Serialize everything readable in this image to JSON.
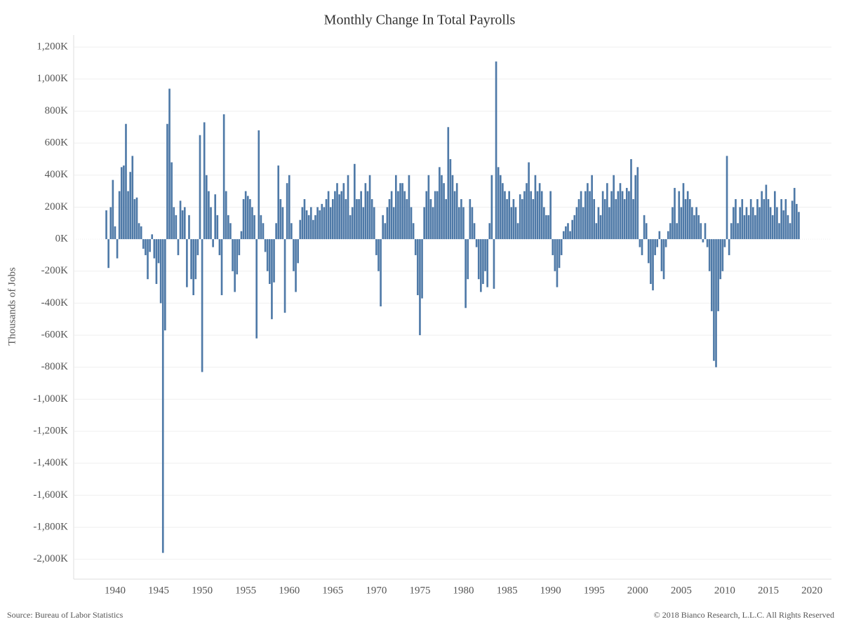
{
  "chart_data": {
    "type": "bar",
    "title": "Monthly Change In Total Payrolls",
    "y_label": "Thousands of Jobs",
    "source": "Source: Bureau of Labor Statistics",
    "copyright": "© 2018 Bianco Research, L.L.C. All Rights Reserved",
    "color": "#4e79a7",
    "grid": true,
    "xlim": [
      1935.25,
      2022.25
    ],
    "xticks": [
      1940,
      1945,
      1950,
      1955,
      1960,
      1965,
      1970,
      1975,
      1980,
      1985,
      1990,
      1995,
      2000,
      2005,
      2010,
      2015,
      2020
    ],
    "ylim": [
      -2080,
      1240
    ],
    "yticks": [
      {
        "value": 1200,
        "label": "1,200K"
      },
      {
        "value": 1000,
        "label": "1,000K"
      },
      {
        "value": 800,
        "label": "800K"
      },
      {
        "value": 600,
        "label": "600K"
      },
      {
        "value": 400,
        "label": "400K"
      },
      {
        "value": 200,
        "label": "200K"
      },
      {
        "value": 0,
        "label": "0K"
      },
      {
        "value": -200,
        "label": "-200K"
      },
      {
        "value": -400,
        "label": "-400K"
      },
      {
        "value": -600,
        "label": "-600K"
      },
      {
        "value": -800,
        "label": "-800K"
      },
      {
        "value": -1000,
        "label": "-1,000K"
      },
      {
        "value": -1200,
        "label": "-1,200K"
      },
      {
        "value": -1400,
        "label": "-1,400K"
      },
      {
        "value": -1600,
        "label": "-1,600K"
      },
      {
        "value": -1800,
        "label": "-1,800K"
      },
      {
        "value": -2000,
        "label": "-2,000K"
      }
    ],
    "x": [
      1939,
      1939.25,
      1939.5,
      1939.75,
      1940,
      1940.25,
      1940.5,
      1940.75,
      1941,
      1941.25,
      1941.5,
      1941.75,
      1942,
      1942.25,
      1942.5,
      1942.75,
      1943,
      1943.25,
      1943.5,
      1943.75,
      1944,
      1944.25,
      1944.5,
      1944.75,
      1945,
      1945.25,
      1945.5,
      1945.75,
      1946,
      1946.25,
      1946.5,
      1946.75,
      1947,
      1947.25,
      1947.5,
      1947.75,
      1948,
      1948.25,
      1948.5,
      1948.75,
      1949,
      1949.25,
      1949.5,
      1949.75,
      1950,
      1950.25,
      1950.5,
      1950.75,
      1951,
      1951.25,
      1951.5,
      1951.75,
      1952,
      1952.25,
      1952.5,
      1952.75,
      1953,
      1953.25,
      1953.5,
      1953.75,
      1954,
      1954.25,
      1954.5,
      1954.75,
      1955,
      1955.25,
      1955.5,
      1955.75,
      1956,
      1956.25,
      1956.5,
      1956.75,
      1957,
      1957.25,
      1957.5,
      1957.75,
      1958,
      1958.25,
      1958.5,
      1958.75,
      1959,
      1959.25,
      1959.5,
      1959.75,
      1960,
      1960.25,
      1960.5,
      1960.75,
      1961,
      1961.25,
      1961.5,
      1961.75,
      1962,
      1962.25,
      1962.5,
      1962.75,
      1963,
      1963.25,
      1963.5,
      1963.75,
      1964,
      1964.25,
      1964.5,
      1964.75,
      1965,
      1965.25,
      1965.5,
      1965.75,
      1966,
      1966.25,
      1966.5,
      1966.75,
      1967,
      1967.25,
      1967.5,
      1967.75,
      1968,
      1968.25,
      1968.5,
      1968.75,
      1969,
      1969.25,
      1969.5,
      1969.75,
      1970,
      1970.25,
      1970.5,
      1970.75,
      1971,
      1971.25,
      1971.5,
      1971.75,
      1972,
      1972.25,
      1972.5,
      1972.75,
      1973,
      1973.25,
      1973.5,
      1973.75,
      1974,
      1974.25,
      1974.5,
      1974.75,
      1975,
      1975.25,
      1975.5,
      1975.75,
      1976,
      1976.25,
      1976.5,
      1976.75,
      1977,
      1977.25,
      1977.5,
      1977.75,
      1978,
      1978.25,
      1978.5,
      1978.75,
      1979,
      1979.25,
      1979.5,
      1979.75,
      1980,
      1980.25,
      1980.5,
      1980.75,
      1981,
      1981.25,
      1981.5,
      1981.75,
      1982,
      1982.25,
      1982.5,
      1982.75,
      1983,
      1983.25,
      1983.5,
      1983.75,
      1984,
      1984.25,
      1984.5,
      1984.75,
      1985,
      1985.25,
      1985.5,
      1985.75,
      1986,
      1986.25,
      1986.5,
      1986.75,
      1987,
      1987.25,
      1987.5,
      1987.75,
      1988,
      1988.25,
      1988.5,
      1988.75,
      1989,
      1989.25,
      1989.5,
      1989.75,
      1990,
      1990.25,
      1990.5,
      1990.75,
      1991,
      1991.25,
      1991.5,
      1991.75,
      1992,
      1992.25,
      1992.5,
      1992.75,
      1993,
      1993.25,
      1993.5,
      1993.75,
      1994,
      1994.25,
      1994.5,
      1994.75,
      1995,
      1995.25,
      1995.5,
      1995.75,
      1996,
      1996.25,
      1996.5,
      1996.75,
      1997,
      1997.25,
      1997.5,
      1997.75,
      1998,
      1998.25,
      1998.5,
      1998.75,
      1999,
      1999.25,
      1999.5,
      1999.75,
      2000,
      2000.25,
      2000.5,
      2000.75,
      2001,
      2001.25,
      2001.5,
      2001.75,
      2002,
      2002.25,
      2002.5,
      2002.75,
      2003,
      2003.25,
      2003.5,
      2003.75,
      2004,
      2004.25,
      2004.5,
      2004.75,
      2005,
      2005.25,
      2005.5,
      2005.75,
      2006,
      2006.25,
      2006.5,
      2006.75,
      2007,
      2007.25,
      2007.5,
      2007.75,
      2008,
      2008.25,
      2008.5,
      2008.75,
      2009,
      2009.25,
      2009.5,
      2009.75,
      2010,
      2010.25,
      2010.5,
      2010.75,
      2011,
      2011.25,
      2011.5,
      2011.75,
      2012,
      2012.25,
      2012.5,
      2012.75,
      2013,
      2013.25,
      2013.5,
      2013.75,
      2014,
      2014.25,
      2014.5,
      2014.75,
      2015,
      2015.25,
      2015.5,
      2015.75,
      2016,
      2016.25,
      2016.5,
      2016.75,
      2017,
      2017.25,
      2017.5,
      2017.75,
      2018,
      2018.25,
      2018.5
    ],
    "values": [
      180,
      -180,
      200,
      370,
      80,
      -120,
      300,
      450,
      460,
      720,
      300,
      420,
      520,
      250,
      260,
      100,
      80,
      -60,
      -100,
      -250,
      -80,
      30,
      -120,
      -280,
      -150,
      -400,
      -1960,
      -570,
      720,
      940,
      480,
      200,
      150,
      -100,
      240,
      180,
      200,
      -300,
      150,
      -250,
      -350,
      -250,
      -100,
      650,
      -830,
      730,
      400,
      300,
      200,
      -50,
      280,
      150,
      -100,
      -350,
      780,
      300,
      150,
      100,
      -200,
      -330,
      -220,
      -100,
      50,
      250,
      300,
      270,
      250,
      200,
      150,
      -620,
      680,
      150,
      100,
      -80,
      -200,
      -280,
      -500,
      -270,
      100,
      460,
      250,
      200,
      -460,
      350,
      400,
      100,
      -200,
      -330,
      -150,
      120,
      200,
      250,
      180,
      150,
      200,
      120,
      150,
      200,
      180,
      220,
      200,
      250,
      300,
      200,
      250,
      300,
      350,
      280,
      300,
      350,
      250,
      400,
      150,
      200,
      470,
      250,
      250,
      300,
      200,
      350,
      300,
      400,
      250,
      200,
      -100,
      -200,
      -420,
      150,
      100,
      200,
      250,
      300,
      200,
      400,
      300,
      350,
      350,
      300,
      250,
      400,
      200,
      100,
      -100,
      -350,
      -600,
      -370,
      200,
      300,
      400,
      250,
      200,
      300,
      300,
      450,
      400,
      350,
      250,
      700,
      500,
      400,
      300,
      350,
      200,
      250,
      200,
      -430,
      -250,
      250,
      200,
      100,
      -50,
      -250,
      -330,
      -280,
      -200,
      -300,
      100,
      400,
      -310,
      1110,
      450,
      400,
      350,
      300,
      250,
      300,
      200,
      250,
      200,
      100,
      280,
      250,
      300,
      350,
      480,
      300,
      250,
      400,
      300,
      350,
      300,
      200,
      150,
      150,
      300,
      -100,
      -200,
      -300,
      -180,
      -100,
      50,
      80,
      100,
      50,
      120,
      150,
      200,
      250,
      300,
      200,
      300,
      350,
      300,
      400,
      250,
      100,
      200,
      150,
      300,
      250,
      350,
      200,
      300,
      400,
      250,
      300,
      350,
      300,
      250,
      320,
      300,
      500,
      250,
      400,
      450,
      -50,
      -100,
      150,
      100,
      -150,
      -280,
      -320,
      -100,
      -50,
      50,
      -200,
      -250,
      -50,
      50,
      100,
      200,
      320,
      100,
      300,
      200,
      350,
      250,
      300,
      250,
      200,
      150,
      200,
      150,
      100,
      -20,
      100,
      -50,
      -200,
      -450,
      -760,
      -800,
      -450,
      -250,
      -200,
      -50,
      520,
      -100,
      100,
      200,
      250,
      100,
      200,
      250,
      150,
      200,
      150,
      250,
      200,
      150,
      250,
      200,
      300,
      250,
      340,
      250,
      200,
      150,
      300,
      200,
      100,
      250,
      180,
      250,
      150,
      100,
      240,
      320,
      220,
      170
    ]
  }
}
